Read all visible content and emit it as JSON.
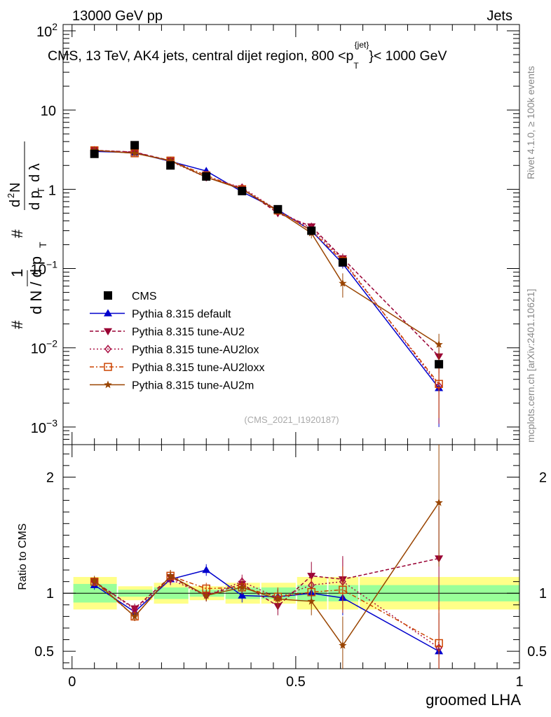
{
  "header": {
    "left": "13000 GeV pp",
    "right": "Jets"
  },
  "side_labels": {
    "rivet": "Rivet 4.1.0, ≥ 100k events",
    "mcplots": "mcplots.cern.ch [arXiv:2401.10621]"
  },
  "colors": {
    "data": "#000000",
    "default": "#0000cc",
    "au2": "#990033",
    "au2lox": "#aa1144",
    "au2loxx": "#cc4400",
    "au2m": "#994400",
    "band_inner": "#99ff99",
    "band_outer": "#ffff88"
  },
  "chart_data": [
    {
      "type": "line",
      "panel": "main",
      "title": "CMS, 13 TeV, AK4 jets, central dijet region, 800 <p_T^{jet}< 1000 GeV",
      "title_parts": {
        "prefix": "CMS, 13 TeV, AK4 jets, central dijet region, 800 <p",
        "sup": "{jet}",
        "sub": "T",
        "suffix": "}< 1000 GeV"
      },
      "ylabel": "1/N dN/dp_T · d²N/dp_T dλ",
      "ylabel_parts": {
        "a": "1",
        "b": "d N / d p",
        "c": "T",
        "d": "#",
        "e": "d",
        "f": "2",
        "g": "N",
        "h": "d p",
        "i": "d λ"
      },
      "yscale": "log",
      "ylim": [
        0.0006,
        120
      ],
      "xlim": [
        -0.02,
        1.0
      ],
      "ytick_labels": [
        {
          "v": 0.001,
          "base": "10",
          "exp": "−3"
        },
        {
          "v": 0.01,
          "base": "10",
          "exp": "−2"
        },
        {
          "v": 0.1,
          "base": "10",
          "exp": "−1"
        },
        {
          "v": 1,
          "base": "1",
          "exp": ""
        },
        {
          "v": 10,
          "base": "10",
          "exp": ""
        },
        {
          "v": 100,
          "base": "10",
          "exp": "2"
        }
      ],
      "watermark": "(CMS_2021_I1920187)",
      "legend_position": "bottom-left",
      "x": [
        0.05,
        0.14,
        0.22,
        0.3,
        0.38,
        0.46,
        0.535,
        0.605,
        0.82
      ],
      "bins": [
        0.0,
        0.1,
        0.18,
        0.26,
        0.34,
        0.42,
        0.5,
        0.57,
        0.64,
        1.0
      ],
      "data": {
        "name": "CMS",
        "values": [
          2.8,
          3.6,
          2.0,
          1.45,
          0.95,
          0.56,
          0.3,
          0.12,
          0.0062
        ]
      },
      "series": [
        {
          "name": "Pythia 8.315 default",
          "key": "default",
          "marker": "triangle-up",
          "dash": "",
          "values": [
            3.0,
            2.9,
            2.25,
            1.7,
            0.93,
            0.55,
            0.3,
            0.115,
            0.0031
          ],
          "errors": [
            0.1,
            0.1,
            0.08,
            0.07,
            0.05,
            0.04,
            0.03,
            0.015,
            0.0021
          ]
        },
        {
          "name": "Pythia 8.315 tune-AU2",
          "key": "au2",
          "marker": "triangle-down",
          "dash": "5,3",
          "values": [
            3.1,
            2.95,
            2.3,
            1.42,
            1.03,
            0.5,
            0.34,
            0.135,
            0.0078
          ],
          "errors": [
            0.1,
            0.1,
            0.08,
            0.07,
            0.05,
            0.04,
            0.04,
            0.02,
            0.003
          ]
        },
        {
          "name": "Pythia 8.315 tune-AU2lox",
          "key": "au2lox",
          "marker": "diamond",
          "dash": "2,3",
          "values": [
            3.1,
            2.95,
            2.25,
            1.42,
            1.05,
            0.54,
            0.32,
            0.13,
            0.0033
          ],
          "errors": [
            0.1,
            0.1,
            0.08,
            0.07,
            0.05,
            0.04,
            0.04,
            0.02,
            0.0022
          ]
        },
        {
          "name": "Pythia 8.315 tune-AU2loxx",
          "key": "au2loxx",
          "marker": "square-open",
          "dash": "6,3,2,3",
          "values": [
            3.1,
            2.85,
            2.3,
            1.5,
            1.0,
            0.54,
            0.3,
            0.125,
            0.0035
          ],
          "errors": [
            0.1,
            0.1,
            0.08,
            0.07,
            0.05,
            0.04,
            0.04,
            0.02,
            0.0022
          ]
        },
        {
          "name": "Pythia 8.315 tune-AU2m",
          "key": "au2m",
          "marker": "star",
          "dash": "",
          "values": [
            3.1,
            2.85,
            2.3,
            1.42,
            1.0,
            0.53,
            0.28,
            0.065,
            0.011
          ],
          "errors": [
            0.1,
            0.1,
            0.08,
            0.07,
            0.05,
            0.04,
            0.04,
            0.022,
            0.004
          ]
        }
      ]
    },
    {
      "type": "line",
      "panel": "ratio",
      "ylabel": "Ratio to CMS",
      "xlabel": "groomed LHA",
      "ylim": [
        0.35,
        2.28
      ],
      "xlim": [
        -0.02,
        1.0
      ],
      "yticks": [
        0.5,
        1,
        2
      ],
      "ytick_labels": [
        "0.5",
        "1",
        "2"
      ],
      "xticks": [
        0,
        0.5,
        1
      ],
      "xtick_labels": [
        "0",
        "0.5",
        "1"
      ],
      "band_inner": [
        0.08,
        0.03,
        0.05,
        0.03,
        0.05,
        0.05,
        0.07,
        0.07,
        0.07
      ],
      "band_outer": [
        0.14,
        0.06,
        0.09,
        0.06,
        0.09,
        0.09,
        0.14,
        0.14,
        0.14
      ],
      "series": [
        {
          "key": "default",
          "values": [
            1.07,
            0.84,
            1.12,
            1.2,
            0.98,
            0.97,
            1.0,
            0.96,
            0.5
          ],
          "errors": [
            0.04,
            0.04,
            0.05,
            0.05,
            0.06,
            0.06,
            0.09,
            0.15,
            0.33
          ]
        },
        {
          "key": "au2",
          "values": [
            1.1,
            0.87,
            1.14,
            0.98,
            1.08,
            0.89,
            1.15,
            1.12,
            1.3
          ],
          "errors": [
            0.04,
            0.04,
            0.05,
            0.05,
            0.06,
            0.08,
            0.12,
            0.2,
            0.45
          ]
        },
        {
          "key": "au2lox",
          "values": [
            1.1,
            0.86,
            1.12,
            0.98,
            1.1,
            0.96,
            1.07,
            1.1,
            0.53
          ],
          "errors": [
            0.04,
            0.04,
            0.05,
            0.05,
            0.06,
            0.08,
            0.12,
            0.2,
            0.35
          ]
        },
        {
          "key": "au2loxx",
          "values": [
            1.1,
            0.8,
            1.15,
            1.04,
            1.05,
            0.97,
            1.01,
            1.03,
            0.57
          ],
          "errors": [
            0.04,
            0.04,
            0.05,
            0.05,
            0.06,
            0.08,
            0.12,
            0.2,
            0.35
          ]
        },
        {
          "key": "au2m",
          "values": [
            1.11,
            0.8,
            1.15,
            0.98,
            1.05,
            0.95,
            0.93,
            0.55,
            1.78
          ],
          "errors": [
            0.04,
            0.04,
            0.05,
            0.05,
            0.06,
            0.08,
            0.12,
            0.25,
            0.55
          ]
        }
      ]
    }
  ]
}
